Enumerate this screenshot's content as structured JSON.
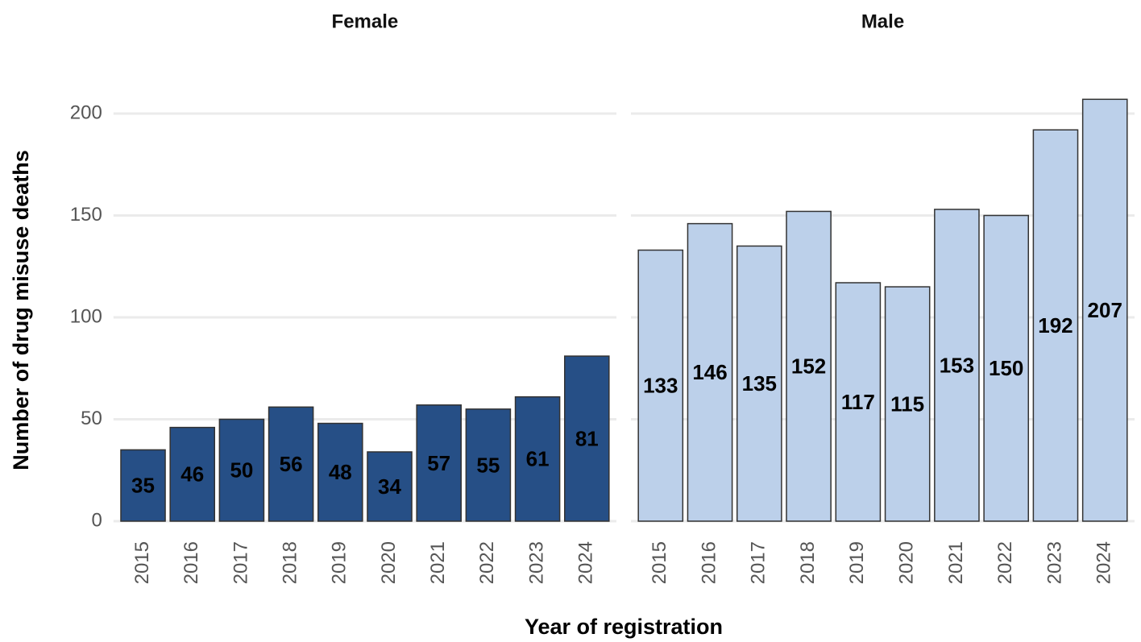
{
  "ylabel": "Number of drug misuse deaths",
  "xlabel": "Year of registration",
  "chart_data": [
    {
      "type": "bar",
      "title": "Female",
      "color": "#264f86",
      "categories": [
        "2015",
        "2016",
        "2017",
        "2018",
        "2019",
        "2020",
        "2021",
        "2022",
        "2023",
        "2024"
      ],
      "values": [
        35,
        46,
        50,
        56,
        48,
        34,
        57,
        55,
        61,
        81
      ],
      "ylim": [
        0,
        210
      ],
      "yticks": [
        0,
        50,
        100,
        150,
        200
      ],
      "grid": true,
      "show_yticks": true
    },
    {
      "type": "bar",
      "title": "Male",
      "color": "#bcd0ea",
      "categories": [
        "2015",
        "2016",
        "2017",
        "2018",
        "2019",
        "2020",
        "2021",
        "2022",
        "2023",
        "2024"
      ],
      "values": [
        133,
        146,
        135,
        152,
        117,
        115,
        153,
        150,
        192,
        207
      ],
      "ylim": [
        0,
        210
      ],
      "yticks": [
        0,
        50,
        100,
        150,
        200
      ],
      "grid": true,
      "show_yticks": false
    }
  ]
}
